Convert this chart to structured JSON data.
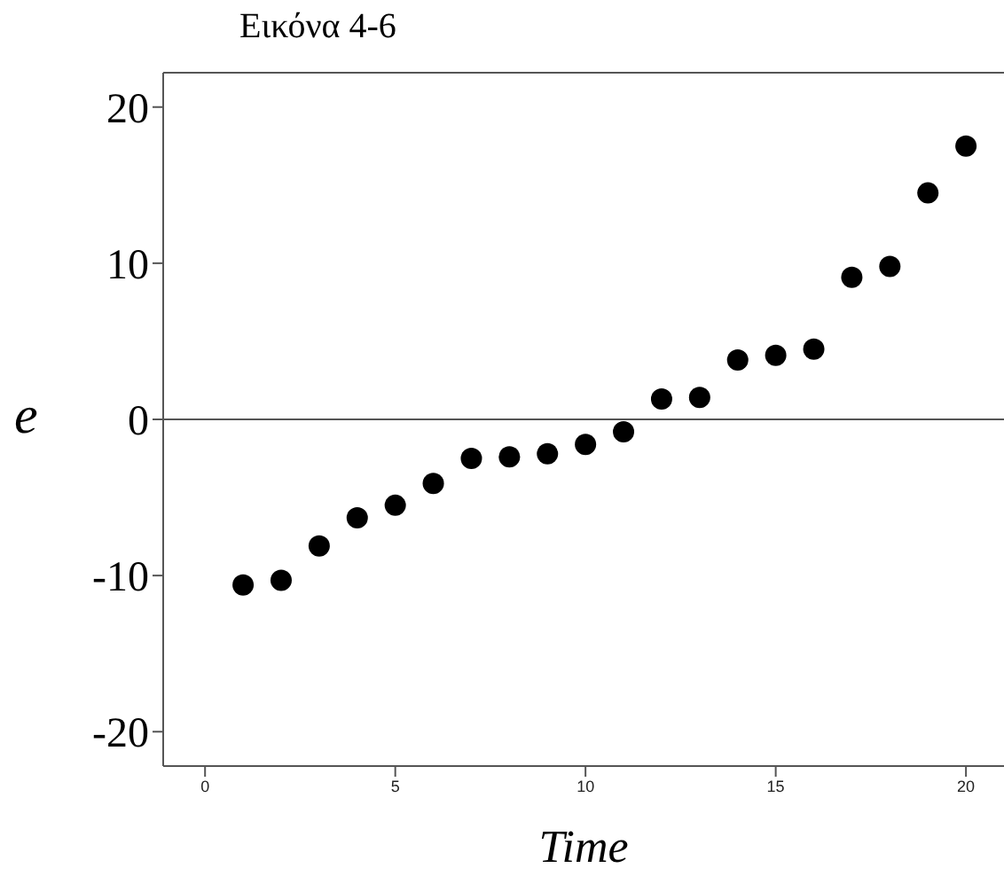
{
  "chart_data": {
    "type": "scatter",
    "title": "Εικόνα 4-6",
    "xlabel": "Time",
    "ylabel": "e",
    "x": [
      1,
      2,
      3,
      4,
      5,
      6,
      7,
      8,
      9,
      10,
      11,
      12,
      13,
      14,
      15,
      16,
      17,
      18,
      19,
      20
    ],
    "series": [
      {
        "color": "#000000",
        "values": [
          -10.6,
          -10.3,
          -8.1,
          -6.3,
          -5.5,
          -4.1,
          -2.5,
          -2.4,
          -2.2,
          -1.6,
          -0.8,
          1.3,
          1.4,
          3.8,
          4.1,
          4.5,
          9.1,
          9.8,
          14.5,
          17.5
        ]
      }
    ],
    "xlim": [
      -1.1,
      21
    ],
    "xticks": [
      0,
      5,
      10,
      15,
      20
    ],
    "ylim": [
      -22.2,
      22.2
    ],
    "yticks": [
      -20,
      -10,
      0,
      10,
      20
    ],
    "ref_lines": [
      {
        "axis": "y",
        "value": 0,
        "color": "#555555"
      }
    ],
    "marker": "circle",
    "grid": false
  }
}
